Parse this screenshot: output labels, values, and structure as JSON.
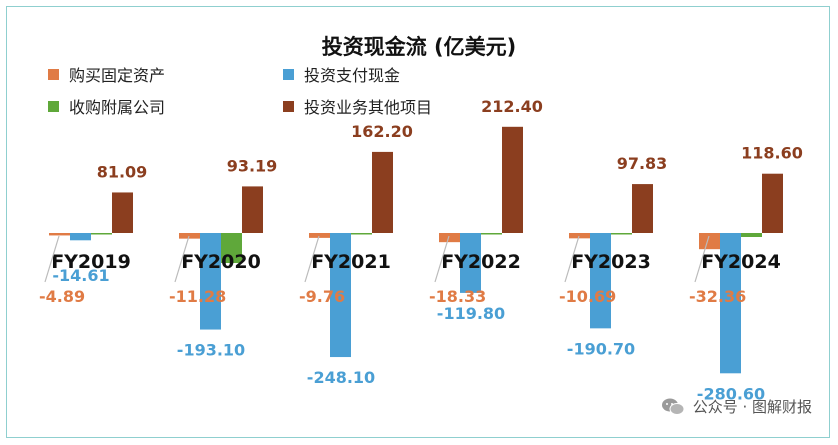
{
  "chart_data": {
    "type": "bar",
    "title": "投资现金流 (亿美元)",
    "categories": [
      "FY2019",
      "FY2020",
      "FY2021",
      "FY2022",
      "FY2023",
      "FY2024"
    ],
    "series": [
      {
        "name": "购买固定资产",
        "color": "#e07b45",
        "values": [
          -4.89,
          -11.28,
          -9.76,
          -18.33,
          -10.69,
          -32.36
        ],
        "labels": [
          "-4.89",
          "-11.28",
          "-9.76",
          "-18.33",
          "-10.69",
          "-32.36"
        ]
      },
      {
        "name": "投资支付现金",
        "color": "#4a9fd4",
        "values": [
          -14.61,
          -193.1,
          -248.1,
          -119.8,
          -190.7,
          -280.6
        ],
        "labels": [
          "-14.61",
          "-193.10",
          "-248.10",
          "-119.80",
          "-190.70",
          "-280.60"
        ]
      },
      {
        "name": "收购附属公司",
        "color": "#5fa83a",
        "values": [
          -1.5,
          -60.0,
          -1.0,
          -1.0,
          -1.5,
          -8.0
        ],
        "labels": []
      },
      {
        "name": "投资业务其他项目",
        "color": "#8b3e1f",
        "values": [
          81.09,
          93.19,
          162.2,
          212.4,
          97.83,
          118.6
        ],
        "labels": [
          "81.09",
          "93.19",
          "162.20",
          "212.40",
          "97.83",
          "118.60"
        ]
      }
    ],
    "legend_position": "top-left",
    "grid": false
  },
  "watermark": {
    "text": "公众号 · 图解财报",
    "icon": "wechat-icon"
  }
}
